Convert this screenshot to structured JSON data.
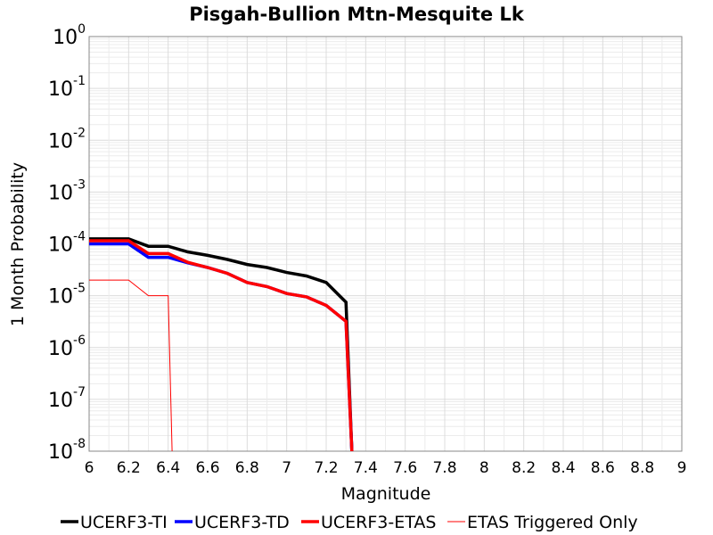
{
  "chart_data": {
    "type": "line",
    "title": "Pisgah-Bullion Mtn-Mesquite Lk",
    "xlabel": "Magnitude",
    "ylabel": "1 Month Probability",
    "xlim": [
      6,
      9
    ],
    "ylim": [
      1e-08,
      1
    ],
    "yscale": "log",
    "grid": true,
    "legend_position": "bottom",
    "x_ticks": [
      "6",
      "6.2",
      "6.4",
      "6.6",
      "6.8",
      "7",
      "7.2",
      "7.4",
      "7.6",
      "7.8",
      "8",
      "8.2",
      "8.4",
      "8.6",
      "8.8",
      "9"
    ],
    "y_ticks": [
      {
        "base": "10",
        "exp": "0"
      },
      {
        "base": "10",
        "exp": "-1"
      },
      {
        "base": "10",
        "exp": "-2"
      },
      {
        "base": "10",
        "exp": "-3"
      },
      {
        "base": "10",
        "exp": "-4"
      },
      {
        "base": "10",
        "exp": "-5"
      },
      {
        "base": "10",
        "exp": "-6"
      },
      {
        "base": "10",
        "exp": "-7"
      },
      {
        "base": "10",
        "exp": "-8"
      }
    ],
    "series": [
      {
        "name": "UCERF3-TI",
        "color": "#000000",
        "style": "thick",
        "x": [
          6.0,
          6.2,
          6.3,
          6.4,
          6.5,
          6.6,
          6.7,
          6.8,
          6.9,
          7.0,
          7.1,
          7.2,
          7.3,
          7.33
        ],
        "y": [
          0.000125,
          0.000125,
          9e-05,
          9e-05,
          7e-05,
          6e-05,
          5e-05,
          4e-05,
          3.5e-05,
          2.8e-05,
          2.4e-05,
          1.8e-05,
          7.5e-06,
          1e-08
        ]
      },
      {
        "name": "UCERF3-TD",
        "color": "#0000ff",
        "style": "thick",
        "x": [
          6.0,
          6.2,
          6.3,
          6.4,
          6.5,
          6.6,
          6.7,
          6.8,
          6.9,
          7.0,
          7.1,
          7.2,
          7.3,
          7.33
        ],
        "y": [
          0.0001,
          0.0001,
          5.5e-05,
          5.5e-05,
          4.3e-05,
          3.5e-05,
          2.7e-05,
          1.8e-05,
          1.5e-05,
          1.1e-05,
          9.5e-06,
          6.5e-06,
          3.2e-06,
          1e-08
        ]
      },
      {
        "name": "UCERF3-ETAS",
        "color": "#ff0000",
        "style": "thick",
        "x": [
          6.0,
          6.2,
          6.3,
          6.4,
          6.5,
          6.6,
          6.7,
          6.8,
          6.9,
          7.0,
          7.1,
          7.2,
          7.3,
          7.33
        ],
        "y": [
          0.000115,
          0.000115,
          6.5e-05,
          6.5e-05,
          4.4e-05,
          3.5e-05,
          2.7e-05,
          1.8e-05,
          1.5e-05,
          1.1e-05,
          9.5e-06,
          6.5e-06,
          3.2e-06,
          1e-08
        ]
      },
      {
        "name": "ETAS Triggered Only",
        "color": "#ff0000",
        "style": "thin",
        "x": [
          6.0,
          6.2,
          6.3,
          6.4,
          6.42
        ],
        "y": [
          2e-05,
          2e-05,
          1e-05,
          1e-05,
          1e-08
        ]
      }
    ]
  }
}
